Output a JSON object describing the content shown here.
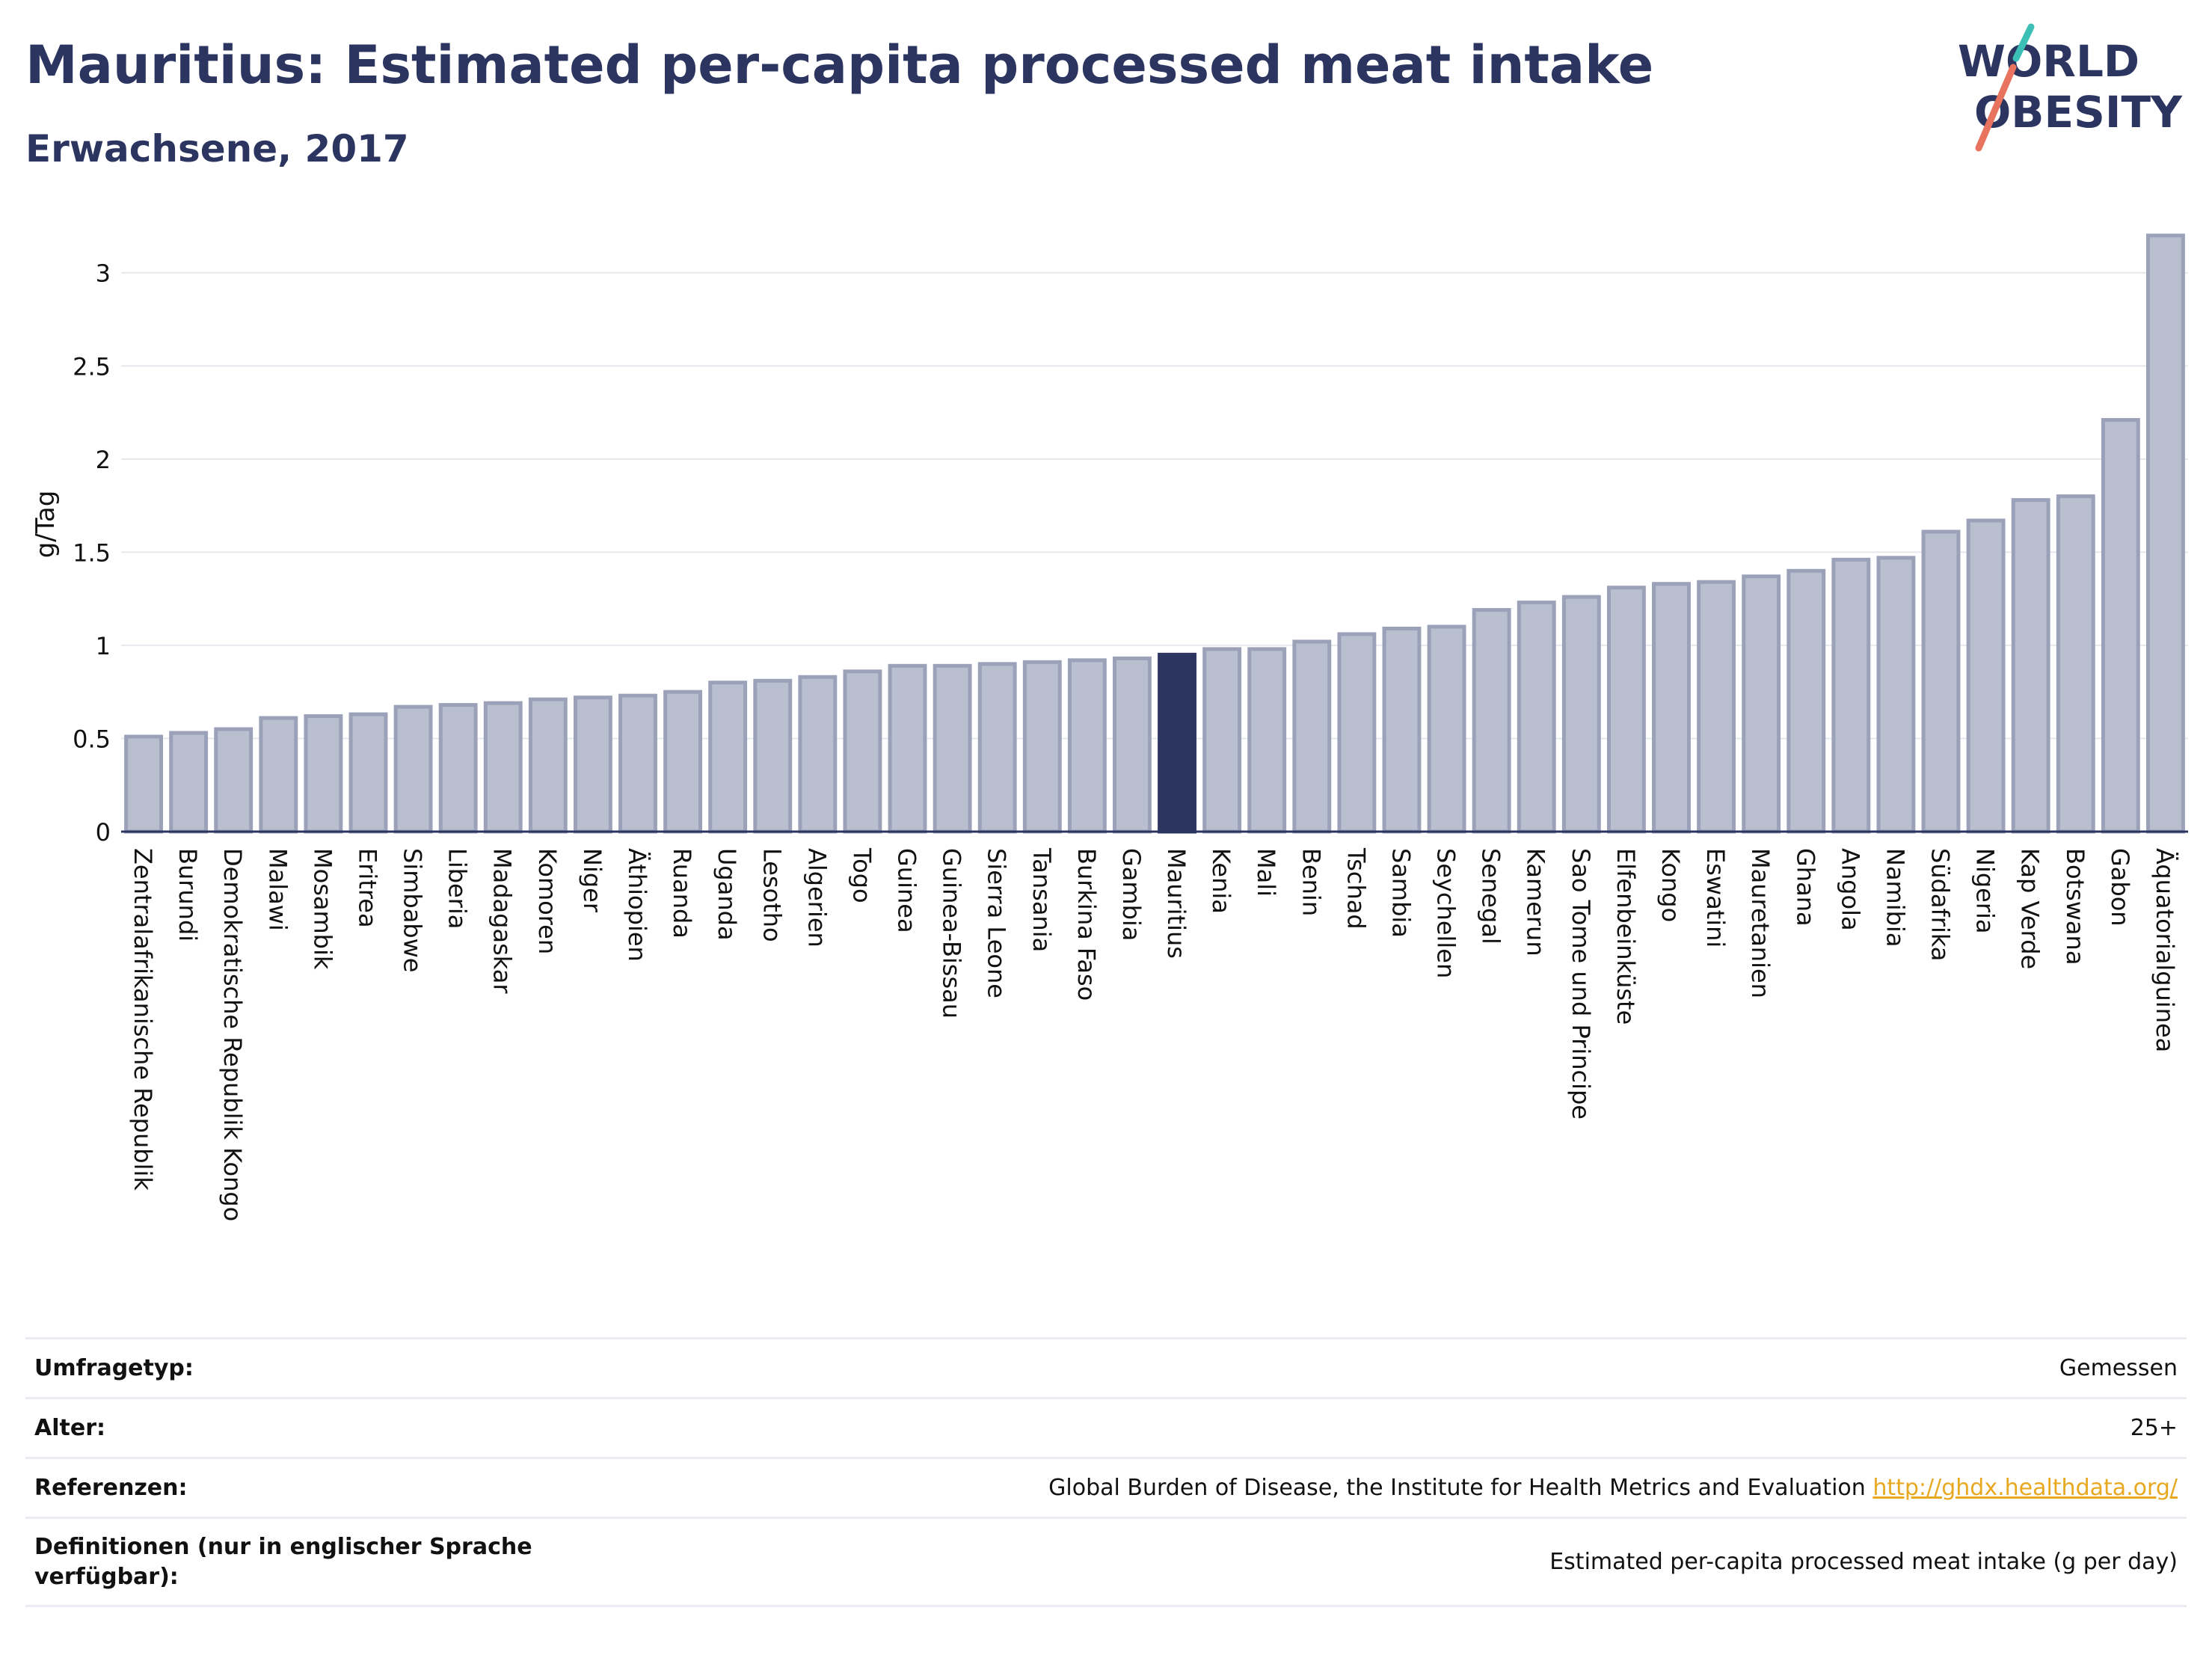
{
  "header": {
    "title": "Mauritius: Estimated per-capita processed meat intake",
    "subtitle": "Erwachsene, 2017"
  },
  "logo": {
    "line1": "WORLD",
    "line2": "OBESITY",
    "slash_colors": [
      "#3cbfb5",
      "#e8735f"
    ]
  },
  "colors": {
    "bar": "#b9bfcf",
    "bar_border": "#9aa1b8",
    "highlight": "#2b3560",
    "grid": "#e6e8ee",
    "title": "#2b3560",
    "link": "#e8a820"
  },
  "chart_data": {
    "type": "bar",
    "title": "Mauritius: Estimated per-capita processed meat intake",
    "subtitle": "Erwachsene, 2017",
    "xlabel": "",
    "ylabel": "g/Tag",
    "ylim": [
      0,
      3.3
    ],
    "yticks": [
      0,
      0.5,
      1,
      1.5,
      2,
      2.5,
      3
    ],
    "ytick_labels": [
      "0",
      "0.5",
      "1",
      "1.5",
      "2",
      "2.5",
      "3"
    ],
    "grid": true,
    "highlight": "Mauritius",
    "categories": [
      "Zentralafrikanische Republik",
      "Burundi",
      "Demokratische Republik Kongo",
      "Malawi",
      "Mosambik",
      "Eritrea",
      "Simbabwe",
      "Liberia",
      "Madagaskar",
      "Komoren",
      "Niger",
      "Äthiopien",
      "Ruanda",
      "Uganda",
      "Lesotho",
      "Algerien",
      "Togo",
      "Guinea",
      "Guinea-Bissau",
      "Sierra Leone",
      "Tansania",
      "Burkina Faso",
      "Gambia",
      "Mauritius",
      "Kenia",
      "Mali",
      "Benin",
      "Tschad",
      "Sambia",
      "Seychellen",
      "Senegal",
      "Kamerun",
      "Sao Tome und Principe",
      "Elfenbeinküste",
      "Kongo",
      "Eswatini",
      "Mauretanien",
      "Ghana",
      "Angola",
      "Namibia",
      "Südafrika",
      "Nigeria",
      "Kap Verde",
      "Botswana",
      "Gabon",
      "Äquatorialguinea"
    ],
    "values": [
      0.51,
      0.53,
      0.55,
      0.61,
      0.62,
      0.63,
      0.67,
      0.68,
      0.69,
      0.71,
      0.72,
      0.73,
      0.75,
      0.8,
      0.81,
      0.83,
      0.86,
      0.89,
      0.89,
      0.9,
      0.91,
      0.92,
      0.93,
      0.95,
      0.98,
      0.98,
      1.02,
      1.06,
      1.09,
      1.1,
      1.19,
      1.23,
      1.26,
      1.31,
      1.33,
      1.34,
      1.37,
      1.4,
      1.46,
      1.47,
      1.61,
      1.67,
      1.78,
      1.8,
      2.21,
      3.2
    ]
  },
  "info": {
    "survey_label": "Umfragetyp:",
    "survey_value": "Gemessen",
    "age_label": "Alter:",
    "age_value": "25+",
    "refs_label": "Referenzen:",
    "refs_value": "Global Burden of Disease, the Institute for Health Metrics and Evaluation ",
    "refs_link": "http://ghdx.healthdata.org/",
    "defs_label": "Definitionen (nur in englischer Sprache verfügbar):",
    "defs_value": "Estimated per-capita processed meat intake (g per day)"
  }
}
